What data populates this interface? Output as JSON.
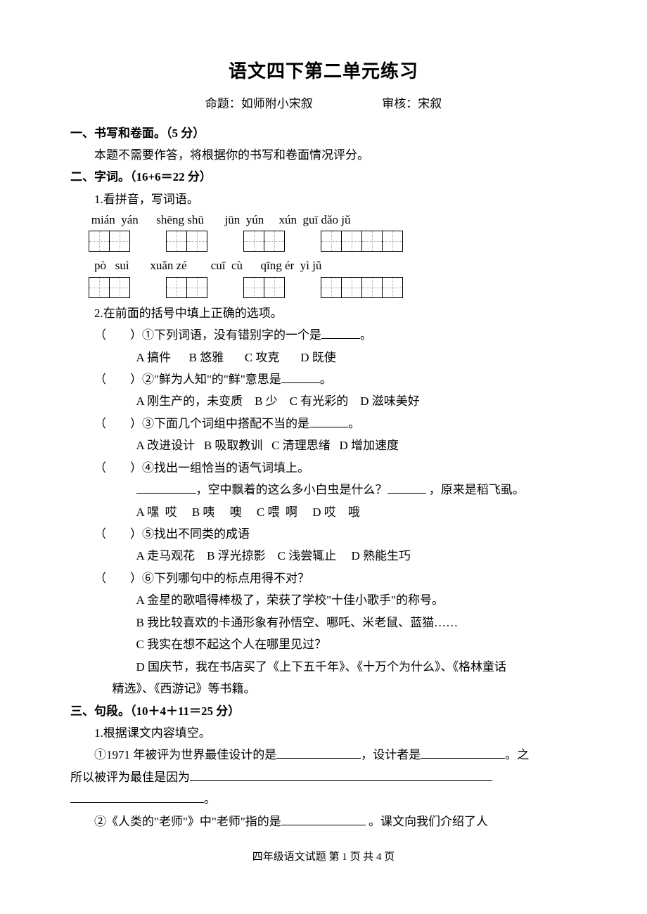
{
  "title": "语文四下第二单元练习",
  "subtitle_left": "命题：如师附小宋叙",
  "subtitle_right": "审核：宋叙",
  "section1": {
    "head": "一、书写和卷面。（5 分）",
    "body": "本题不需要作答，将根据你的书写和卷面情况评分。"
  },
  "section2": {
    "head": "二、字词。（16+6＝22 分）",
    "q1_head": "1.看拼音，写词语。",
    "pinyin_row1": " mián  yán      shēng shū       jūn  yún     xún  guī dǎo jǔ",
    "boxes_row1": [
      2,
      2,
      2,
      4
    ],
    "pinyin_row2": "  pò   suì       xuǎn zé        cuī  cù      qīng ér  yì jǔ",
    "boxes_row2": [
      2,
      2,
      2,
      4
    ],
    "q2_head": "2.在前面的括号中填上正确的选项。",
    "questions": [
      {
        "stem": "①下列词语，没有错别字的一个是",
        "blank": "sm",
        "tail": "。",
        "opts": "A 搞件      B 悠雅       C 攻克       D 既使"
      },
      {
        "stem": "②\"鲜为人知\"的\"鲜\"意思是",
        "blank": "sm",
        "tail": "。",
        "opts": "A 刚生产的，未变质    B 少    C 有光彩的    D 滋味美好"
      },
      {
        "stem": "③下面几个词组中搭配不当的是",
        "blank": "sm",
        "tail": "。",
        "opts": "A 改进设计   B 吸取教训   C 清理思绪   D 增加速度"
      },
      {
        "stem": "④找出一组恰当的语气词填上。",
        "blank": "",
        "tail": "",
        "extra_text": "，空中飘着的这么多小白虫是什么？",
        "extra_tail": "，原来是稻飞虱。",
        "opts": "A 嘿  哎     B 咦     噢     C 喂  啊     D 哎    哦"
      },
      {
        "stem": "⑤找出不同类的成语",
        "blank": "",
        "tail": "",
        "opts": "A 走马观花    B 浮光掠影    C 浅尝辄止     D 熟能生巧"
      },
      {
        "stem": "⑥下列哪句中的标点用得不对？",
        "blank": "",
        "tail": "",
        "multi_opts": [
          "A 金星的歌唱得棒极了，荣获了学校\"十佳小歌手\"的称号。",
          "B 我比较喜欢的卡通形象有孙悟空、哪吒、米老鼠、蓝猫……",
          "C 我实在想不起这个人在哪里见过？",
          "D 国庆节，我在书店买了《上下五千年》、《十万个为什么》、《格林童话精选》、《西游记》等书籍。"
        ]
      }
    ]
  },
  "section3": {
    "head": "三、句段。（10＋4＋11＝25 分）",
    "q1_head": "1.根据课文内容填空。",
    "q1_line1_a": "①1971 年被评为世界最佳设计的是",
    "q1_line1_b": "，设计者是",
    "q1_line1_c": "。之",
    "q1_line2_a": "所以被评为最佳是因为",
    "q1_line3_tail": "。",
    "q2_a": "②《人类的\"老师\"》中\"老师\"指的是",
    "q2_b": "。课文向我们介绍了人"
  },
  "footer": "四年级语文试题   第 1 页 共 4 页"
}
